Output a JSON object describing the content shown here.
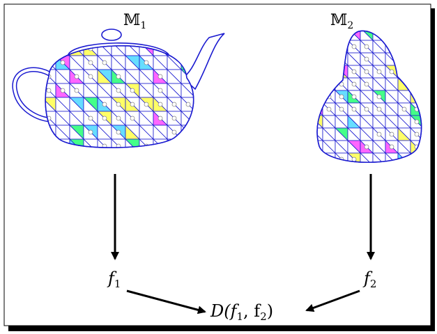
{
  "meshes": [
    {
      "symbol": "𝕄",
      "index": "1",
      "shape": "teapot-icon"
    },
    {
      "symbol": "𝕄",
      "index": "2",
      "shape": "pear-icon"
    }
  ],
  "features": [
    {
      "symbol": "f",
      "index": "1"
    },
    {
      "symbol": "f",
      "index": "2"
    }
  ],
  "distance": {
    "label": "D(f",
    "mid": ", f",
    "end": ")",
    "i1": "1",
    "i2": "2"
  },
  "colors": {
    "edge": "#1a1ad0",
    "vertex": "#8a8a8a",
    "arrow": "#000000",
    "face_fills": [
      "#ff66ff",
      "#66ddff",
      "#ffff66",
      "#44ff88",
      "#ffffff"
    ]
  }
}
